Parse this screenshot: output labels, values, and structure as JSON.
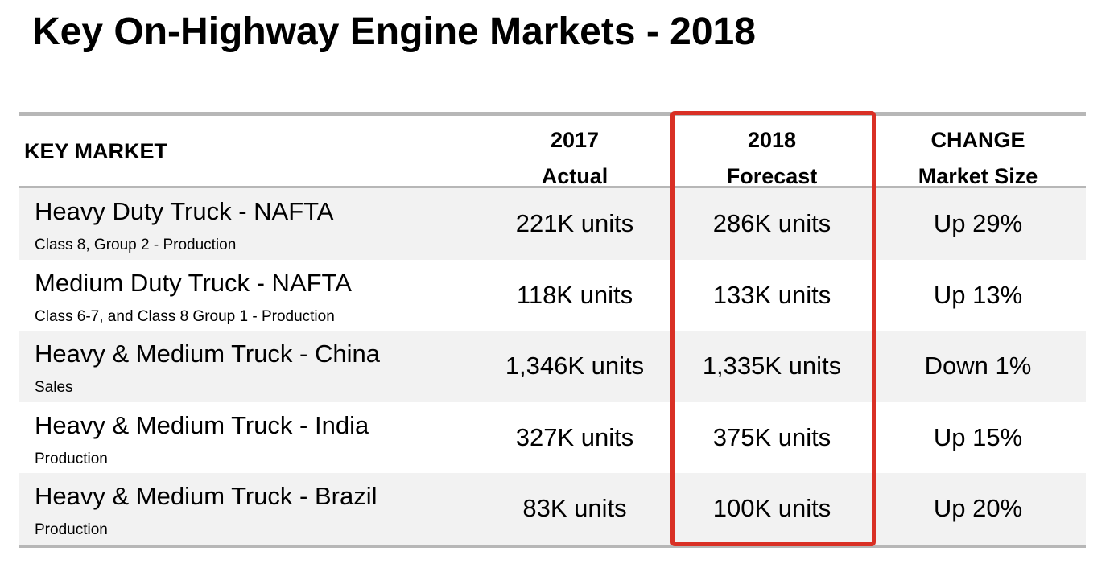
{
  "title": "Key On-Highway Engine Markets - 2018",
  "accent_color": "#d93025",
  "header": {
    "key_market": "KEY MARKET",
    "col1": [
      "2017",
      "Actual"
    ],
    "col2": [
      "2018",
      "Forecast"
    ],
    "col3": [
      "CHANGE",
      "Market Size"
    ]
  },
  "rows": [
    {
      "name": "Heavy Duty Truck - NAFTA",
      "sub": "Class 8, Group 2 - Production",
      "actual_2017": "221K units",
      "forecast_2018": "286K units",
      "change": "Up 29%"
    },
    {
      "name": "Medium Duty Truck - NAFTA",
      "sub": "Class 6-7, and Class 8 Group 1 - Production",
      "actual_2017": "118K units",
      "forecast_2018": "133K units",
      "change": "Up 13%"
    },
    {
      "name": "Heavy & Medium Truck - China",
      "sub": "Sales",
      "actual_2017": "1,346K units",
      "forecast_2018": "1,335K units",
      "change": "Down 1%"
    },
    {
      "name": "Heavy & Medium Truck - India",
      "sub": "Production",
      "actual_2017": "327K units",
      "forecast_2018": "375K units",
      "change": "Up 15%"
    },
    {
      "name": "Heavy & Medium Truck - Brazil",
      "sub": "Production",
      "actual_2017": "83K units",
      "forecast_2018": "100K units",
      "change": "Up 20%"
    }
  ]
}
